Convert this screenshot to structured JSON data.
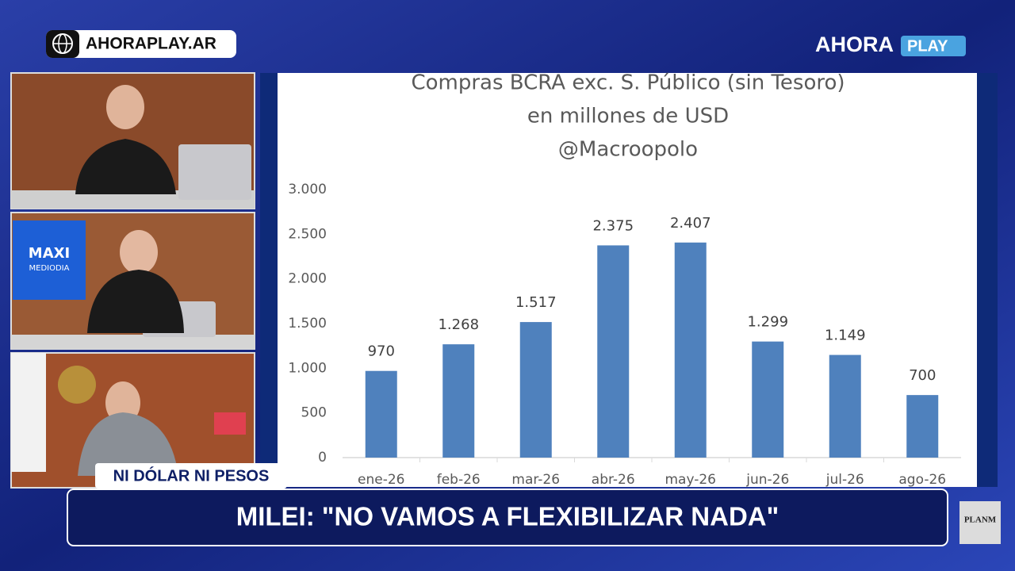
{
  "chart_data": {
    "type": "bar",
    "title": "Compras BCRA exc. S. Público (sin Tesoro)",
    "subtitle": "en millones de USD",
    "source": "@Macroopolo",
    "categories": [
      "ene-26",
      "feb-26",
      "mar-26",
      "abr-26",
      "may-26",
      "jun-26",
      "jul-26",
      "ago-26"
    ],
    "values": [
      970,
      1268,
      1517,
      2375,
      2407,
      1299,
      1149,
      700
    ],
    "value_labels": [
      "970",
      "1.268",
      "1.517",
      "2.375",
      "2.407",
      "1.299",
      "1.149",
      "700"
    ],
    "color": "#4f81bd",
    "ylim": [
      0,
      3000
    ],
    "yticks": [
      0,
      500,
      {
        "value": 1000,
        "label": "1.000"
      },
      {
        "value": 1500,
        "label": "1.500"
      },
      {
        "value": 2000,
        "label": "2.000"
      },
      {
        "value": 2500,
        "label": "2.500"
      },
      {
        "value": 3000,
        "label": "3.000"
      }
    ],
    "grid": false
  },
  "overlay": {
    "site": "AHORAPLAY.AR",
    "logo_main": "AHORA",
    "logo_play": "PLAY",
    "screen_title": "MAXI",
    "screen_subtitle": "MEDIODIA",
    "section": "NI DÓLAR NI PESOS",
    "headline": "MILEI: \"NO VAMOS A FLEXIBILIZAR NADA\"",
    "corner_logo": "PLANM"
  }
}
